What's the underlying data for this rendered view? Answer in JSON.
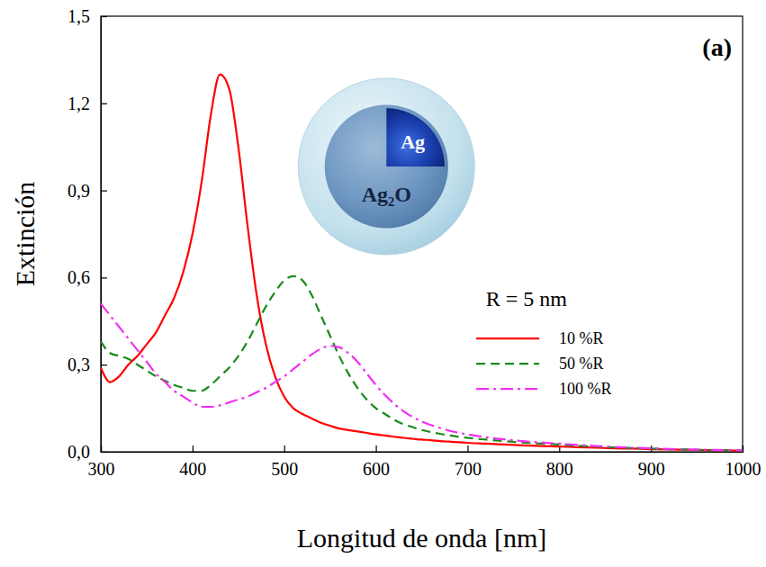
{
  "chart_data": {
    "type": "line",
    "x_label": "Longitud de onda [nm]",
    "y_label": "Extinción",
    "x": [
      300,
      310,
      320,
      330,
      340,
      350,
      360,
      370,
      380,
      390,
      400,
      410,
      420,
      430,
      440,
      450,
      460,
      470,
      480,
      490,
      500,
      510,
      520,
      530,
      540,
      550,
      560,
      570,
      580,
      590,
      600,
      610,
      620,
      630,
      640,
      650,
      660,
      670,
      680,
      690,
      700,
      720,
      740,
      760,
      780,
      800,
      820,
      840,
      860,
      880,
      900,
      920,
      940,
      960,
      980,
      1000
    ],
    "series": [
      {
        "name": "10 %R",
        "color": "#ff0000",
        "line_style": "solid",
        "values": [
          0.29,
          0.24,
          0.26,
          0.3,
          0.33,
          0.37,
          0.41,
          0.47,
          0.53,
          0.62,
          0.75,
          0.93,
          1.16,
          1.3,
          1.25,
          1.05,
          0.78,
          0.54,
          0.37,
          0.26,
          0.19,
          0.15,
          0.13,
          0.115,
          0.1,
          0.09,
          0.08,
          0.075,
          0.07,
          0.065,
          0.06,
          0.056,
          0.052,
          0.048,
          0.045,
          0.042,
          0.04,
          0.037,
          0.035,
          0.033,
          0.031,
          0.028,
          0.025,
          0.022,
          0.02,
          0.018,
          0.016,
          0.014,
          0.012,
          0.011,
          0.009,
          0.008,
          0.007,
          0.006,
          0.005,
          0.004
        ]
      },
      {
        "name": "50 %R",
        "color": "#1a8a1a",
        "line_style": "dashed",
        "values": [
          0.38,
          0.34,
          0.33,
          0.32,
          0.3,
          0.28,
          0.26,
          0.245,
          0.23,
          0.22,
          0.21,
          0.21,
          0.23,
          0.26,
          0.29,
          0.33,
          0.38,
          0.44,
          0.5,
          0.55,
          0.59,
          0.605,
          0.59,
          0.54,
          0.47,
          0.4,
          0.33,
          0.27,
          0.22,
          0.18,
          0.15,
          0.13,
          0.11,
          0.095,
          0.085,
          0.075,
          0.068,
          0.062,
          0.057,
          0.052,
          0.048,
          0.042,
          0.037,
          0.032,
          0.028,
          0.025,
          0.021,
          0.018,
          0.015,
          0.013,
          0.011,
          0.009,
          0.008,
          0.006,
          0.005,
          0.004
        ]
      },
      {
        "name": "100 %R",
        "color": "#f030f0",
        "line_style": "dashdot",
        "values": [
          0.51,
          0.47,
          0.43,
          0.39,
          0.35,
          0.31,
          0.27,
          0.24,
          0.21,
          0.19,
          0.17,
          0.155,
          0.155,
          0.16,
          0.17,
          0.18,
          0.19,
          0.205,
          0.22,
          0.24,
          0.26,
          0.285,
          0.31,
          0.335,
          0.355,
          0.365,
          0.36,
          0.34,
          0.31,
          0.27,
          0.23,
          0.195,
          0.165,
          0.14,
          0.12,
          0.105,
          0.092,
          0.082,
          0.073,
          0.066,
          0.06,
          0.05,
          0.043,
          0.037,
          0.032,
          0.028,
          0.024,
          0.02,
          0.017,
          0.014,
          0.012,
          0.01,
          0.008,
          0.007,
          0.006,
          0.005
        ]
      }
    ],
    "xlim": [
      300,
      1000
    ],
    "ylim": [
      0,
      1.5
    ],
    "xticks": [
      300,
      400,
      500,
      600,
      700,
      800,
      900,
      1000
    ],
    "yticks": [
      {
        "value": 0,
        "label": "0,0"
      },
      {
        "value": 0.3,
        "label": "0,3"
      },
      {
        "value": 0.6,
        "label": "0,6"
      },
      {
        "value": 0.9,
        "label": "0,9"
      },
      {
        "value": 1.2,
        "label": "1,2"
      },
      {
        "value": 1.5,
        "label": "1,5"
      }
    ],
    "grid": false,
    "legend": "right",
    "annotations": [
      {
        "text": "(a)"
      },
      {
        "text": "R = 5 nm"
      },
      {
        "text": "Ag"
      },
      {
        "text": "Ag₂O"
      }
    ]
  }
}
